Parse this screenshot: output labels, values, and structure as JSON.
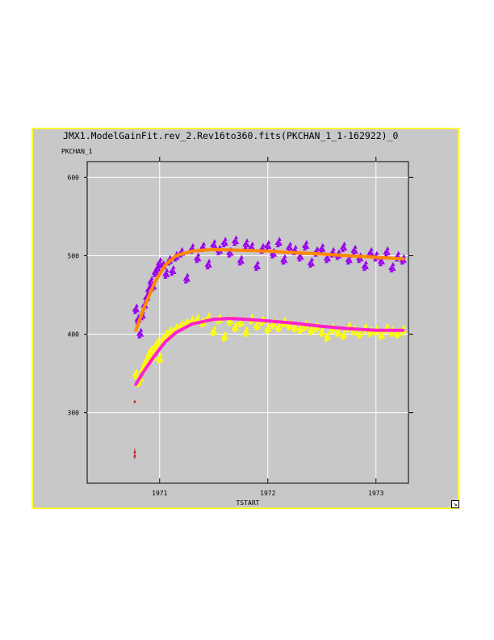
{
  "window": {
    "title": "JMX1.ModelGainFit.rev_2.Rev16to360.fits(PKCHAN_1_1-162922)_0",
    "resize_icon": "resize-arrow-icon"
  },
  "chart_data": {
    "type": "scatter",
    "title": "JMX1.ModelGainFit.rev_2.Rev16to360.fits(PKCHAN_1_1-162922)_0",
    "xlabel": "TSTART",
    "ylabel": "PKCHAN_1",
    "xlim": [
      1970.33,
      1973.3
    ],
    "ylim": [
      210,
      620
    ],
    "xticks": [
      1971,
      1972,
      1973
    ],
    "yticks": [
      300,
      400,
      500,
      600
    ],
    "grid": true,
    "background": "#c8c8c8",
    "frame_color": "#ffff33",
    "series": [
      {
        "kind": "points",
        "color": "#9900ee",
        "marker": "triangle",
        "x": [
          1970.78,
          1970.8,
          1970.82,
          1970.84,
          1970.86,
          1970.88,
          1970.9,
          1970.92,
          1970.94,
          1970.96,
          1970.98,
          1971.0,
          1971.03,
          1971.06,
          1971.09,
          1971.12,
          1971.15,
          1971.2,
          1971.25,
          1971.3,
          1971.35,
          1971.4,
          1971.45,
          1971.5,
          1971.55,
          1971.6,
          1971.65,
          1971.7,
          1971.75,
          1971.8,
          1971.85,
          1971.9,
          1971.95,
          1972.0,
          1972.05,
          1972.1,
          1972.15,
          1972.2,
          1972.25,
          1972.3,
          1972.35,
          1972.4,
          1972.45,
          1972.5,
          1972.55,
          1972.6,
          1972.65,
          1972.7,
          1972.75,
          1972.8,
          1972.85,
          1972.9,
          1972.95,
          1973.0,
          1973.05,
          1973.1,
          1973.15,
          1973.2,
          1973.25
        ],
        "y": [
          433,
          420,
          402,
          425,
          438,
          448,
          458,
          468,
          462,
          480,
          485,
          492,
          488,
          478,
          495,
          482,
          500,
          505,
          472,
          510,
          498,
          512,
          490,
          515,
          508,
          518,
          505,
          520,
          495,
          516,
          512,
          488,
          510,
          514,
          504,
          518,
          496,
          512,
          508,
          500,
          514,
          492,
          506,
          510,
          498,
          505,
          502,
          512,
          496,
          508,
          498,
          488,
          505,
          500,
          494,
          506,
          486,
          500,
          496
        ]
      },
      {
        "kind": "points",
        "color": "#ffff00",
        "marker": "triangle",
        "x": [
          1970.78,
          1970.8,
          1970.82,
          1970.84,
          1970.86,
          1970.88,
          1970.9,
          1970.92,
          1970.94,
          1970.96,
          1970.98,
          1971.0,
          1971.03,
          1971.06,
          1971.1,
          1971.15,
          1971.2,
          1971.25,
          1971.3,
          1971.35,
          1971.4,
          1971.45,
          1971.5,
          1971.55,
          1971.6,
          1971.65,
          1971.7,
          1971.75,
          1971.8,
          1971.85,
          1971.9,
          1971.95,
          1972.0,
          1972.05,
          1972.1,
          1972.15,
          1972.2,
          1972.25,
          1972.3,
          1972.35,
          1972.4,
          1972.45,
          1972.5,
          1972.55,
          1972.6,
          1972.65,
          1972.7,
          1972.75,
          1972.8,
          1972.85,
          1972.9,
          1972.95,
          1973.0,
          1973.05,
          1973.1,
          1973.15,
          1973.2,
          1973.25
        ],
        "y": [
          350,
          340,
          345,
          355,
          362,
          368,
          375,
          380,
          372,
          385,
          390,
          370,
          395,
          400,
          405,
          408,
          412,
          415,
          418,
          420,
          416,
          422,
          405,
          420,
          398,
          418,
          410,
          416,
          404,
          420,
          412,
          418,
          408,
          414,
          410,
          416,
          412,
          410,
          408,
          412,
          406,
          410,
          404,
          398,
          408,
          404,
          400,
          410,
          406,
          402,
          408,
          404,
          406,
          400,
          408,
          404,
          402,
          406
        ]
      },
      {
        "kind": "outliers",
        "color": "#cc2222",
        "x": [
          1970.77,
          1970.77,
          1970.77
        ],
        "y": [
          314,
          250,
          245
        ]
      },
      {
        "kind": "line",
        "color": "#ff8800",
        "x": [
          1970.78,
          1970.85,
          1970.95,
          1971.05,
          1971.15,
          1971.3,
          1971.5,
          1971.75,
          1972.0,
          1972.25,
          1972.5,
          1972.75,
          1973.0,
          1973.25
        ],
        "y": [
          405,
          432,
          465,
          488,
          500,
          506,
          508,
          507,
          506,
          504,
          502,
          500,
          498,
          496
        ]
      },
      {
        "kind": "line",
        "color": "#ff22cc",
        "x": [
          1970.78,
          1970.85,
          1970.95,
          1971.05,
          1971.15,
          1971.3,
          1971.5,
          1971.65,
          1971.8,
          1972.0,
          1972.25,
          1972.5,
          1972.75,
          1973.0,
          1973.25
        ],
        "y": [
          336,
          352,
          372,
          390,
          402,
          413,
          419,
          420,
          419,
          417,
          414,
          410,
          407,
          405,
          405
        ]
      }
    ]
  }
}
